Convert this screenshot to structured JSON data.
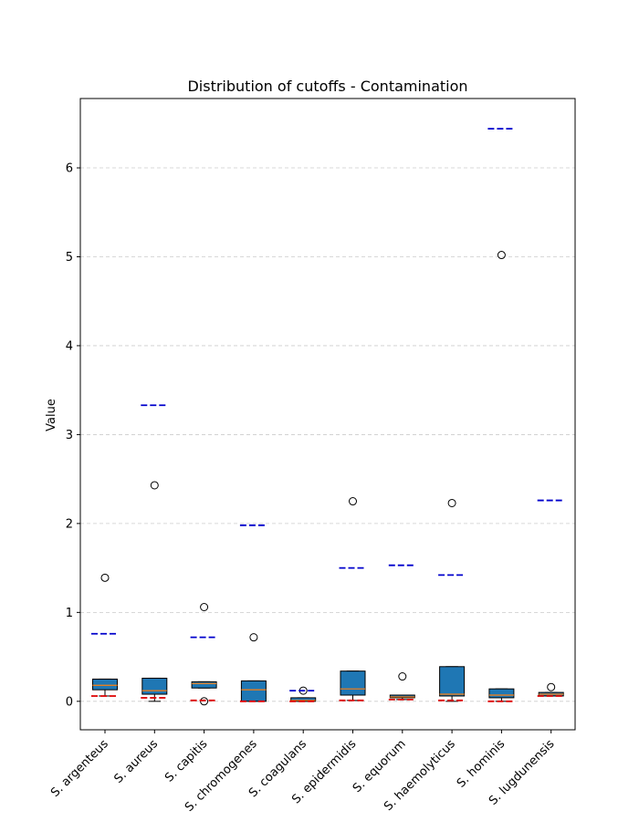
{
  "chart_data": {
    "type": "box",
    "title": "Distribution of cutoffs - Contamination",
    "xlabel": "",
    "ylabel": "Value",
    "ylim": [
      -0.32,
      6.78
    ],
    "yticks": [
      0,
      1,
      2,
      3,
      4,
      5,
      6
    ],
    "grid": "y-dashed",
    "box_color": "#1f77b4",
    "median_color": "#ff7f0e",
    "upper_line_color": "#0000cc",
    "lower_line_color": "#dd0000",
    "categories": [
      "S. argenteus",
      "S. aureus",
      "S. capitis",
      "S. chromogenes",
      "S. coagulans",
      "S. epidermidis",
      "S. equorum",
      "S. haemolyticus",
      "S. hominis",
      "S. lugdunensis"
    ],
    "boxes": [
      {
        "whisker_low": 0.06,
        "q1": 0.13,
        "median": 0.18,
        "q3": 0.25,
        "whisker_high": 0.25,
        "outliers": [
          1.39
        ]
      },
      {
        "whisker_low": 0.0,
        "q1": 0.08,
        "median": 0.12,
        "q3": 0.26,
        "whisker_high": 0.26,
        "outliers": [
          2.43
        ]
      },
      {
        "whisker_low": 0.15,
        "q1": 0.15,
        "median": 0.2,
        "q3": 0.22,
        "whisker_high": 0.22,
        "outliers": [
          1.06,
          0.0
        ]
      },
      {
        "whisker_low": 0.0,
        "q1": 0.0,
        "median": 0.13,
        "q3": 0.23,
        "whisker_high": 0.23,
        "outliers": [
          0.72
        ]
      },
      {
        "whisker_low": 0.0,
        "q1": 0.0,
        "median": 0.01,
        "q3": 0.04,
        "whisker_high": 0.04,
        "outliers": [
          0.12
        ]
      },
      {
        "whisker_low": 0.01,
        "q1": 0.07,
        "median": 0.14,
        "q3": 0.34,
        "whisker_high": 0.34,
        "outliers": [
          2.25
        ]
      },
      {
        "whisker_low": 0.02,
        "q1": 0.04,
        "median": 0.05,
        "q3": 0.07,
        "whisker_high": 0.07,
        "outliers": [
          0.28
        ]
      },
      {
        "whisker_low": 0.0,
        "q1": 0.06,
        "median": 0.08,
        "q3": 0.39,
        "whisker_high": 0.39,
        "outliers": [
          2.23
        ]
      },
      {
        "whisker_low": 0.0,
        "q1": 0.04,
        "median": 0.07,
        "q3": 0.14,
        "whisker_high": 0.14,
        "outliers": [
          5.02
        ]
      },
      {
        "whisker_low": 0.06,
        "q1": 0.06,
        "median": 0.08,
        "q3": 0.1,
        "whisker_high": 0.1,
        "outliers": [
          0.16
        ]
      }
    ],
    "upper_thresholds": [
      0.76,
      3.33,
      0.72,
      1.98,
      0.12,
      1.5,
      1.53,
      1.42,
      6.44,
      2.26
    ],
    "lower_thresholds": [
      0.06,
      0.04,
      0.01,
      0.0,
      0.0,
      0.01,
      0.02,
      0.01,
      0.0,
      0.06
    ]
  }
}
